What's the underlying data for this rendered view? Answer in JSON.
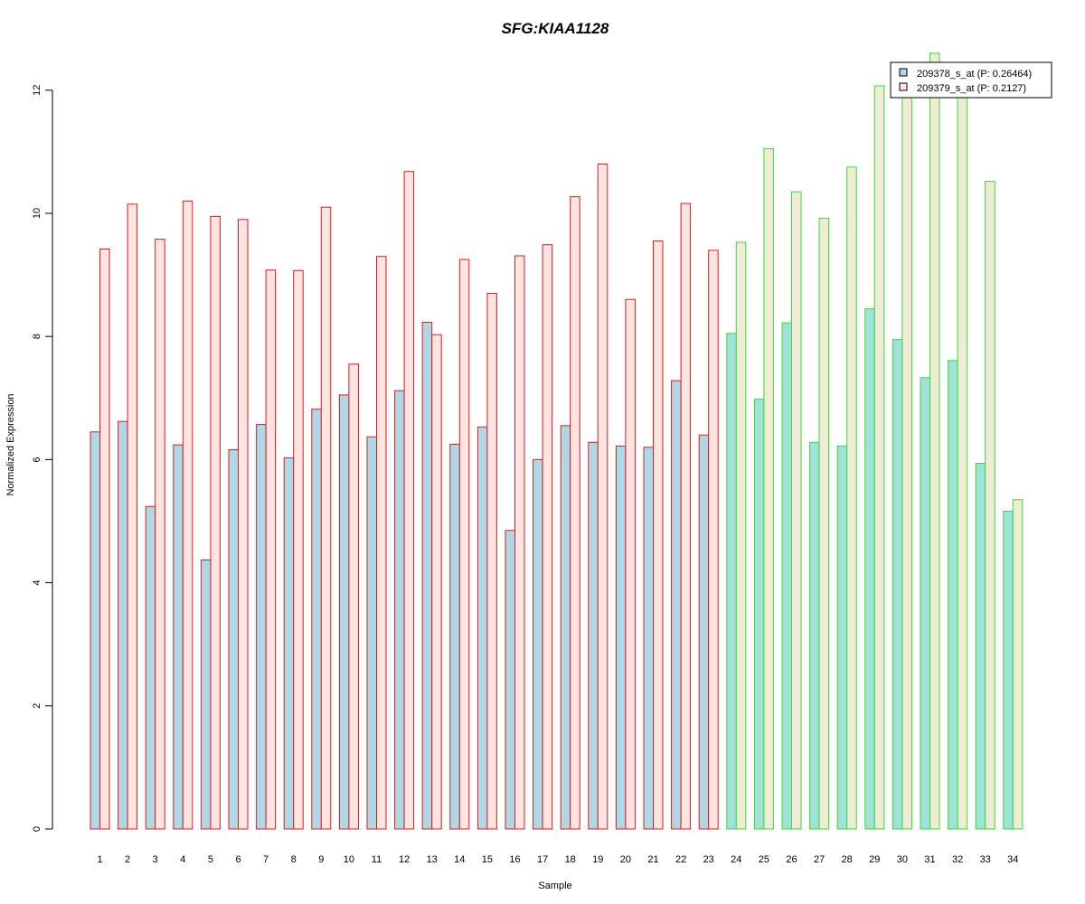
{
  "chart_data": {
    "type": "bar",
    "title": "SFG:KIAA1128",
    "xlabel": "Sample",
    "ylabel": "Normalized Expression",
    "ylim": [
      0,
      12.6
    ],
    "yticks": [
      0,
      2,
      4,
      6,
      8,
      10,
      12
    ],
    "grid": false,
    "legend_position": "top-right",
    "categories": [
      "1",
      "2",
      "3",
      "4",
      "5",
      "6",
      "7",
      "8",
      "9",
      "10",
      "11",
      "12",
      "13",
      "14",
      "15",
      "16",
      "17",
      "18",
      "19",
      "20",
      "21",
      "22",
      "23",
      "24",
      "25",
      "26",
      "27",
      "28",
      "29",
      "30",
      "31",
      "32",
      "33",
      "34"
    ],
    "series": [
      {
        "name": "209378_s_at (P: 0.26464)",
        "values": [
          6.45,
          6.62,
          5.24,
          6.24,
          4.37,
          6.16,
          6.57,
          6.03,
          6.82,
          7.05,
          6.37,
          7.12,
          8.23,
          6.25,
          6.53,
          4.85,
          6.0,
          6.55,
          6.28,
          6.22,
          6.2,
          7.28,
          6.4,
          8.05,
          6.98,
          8.22,
          6.28,
          6.22,
          8.45,
          7.95,
          7.33,
          7.61,
          5.94,
          5.16
        ]
      },
      {
        "name": "209379_s_at (P: 0.2127)",
        "values": [
          9.42,
          10.15,
          9.58,
          10.2,
          9.95,
          9.9,
          9.08,
          9.07,
          10.1,
          7.55,
          9.3,
          10.68,
          8.03,
          9.25,
          8.7,
          9.31,
          9.49,
          10.27,
          10.8,
          8.6,
          9.55,
          10.16,
          9.4,
          9.53,
          11.05,
          10.35,
          9.92,
          10.75,
          12.07,
          12.1,
          12.6,
          12.02,
          10.52,
          5.35
        ]
      }
    ],
    "groups": [
      {
        "samples": "1-23",
        "fill_1": "#add8e6",
        "fill_2": "#ffe4e1",
        "border": "#e31a1c"
      },
      {
        "samples": "24-34",
        "fill_1": "#a0e2d8",
        "fill_2": "#f0ead6",
        "border": "#33dd33"
      }
    ],
    "legend": {
      "swatches": [
        "#add8e6",
        "#ffe4e1"
      ],
      "border": "#000000"
    },
    "colors": {
      "title": "#1a1adb",
      "axis": "#000000"
    }
  }
}
